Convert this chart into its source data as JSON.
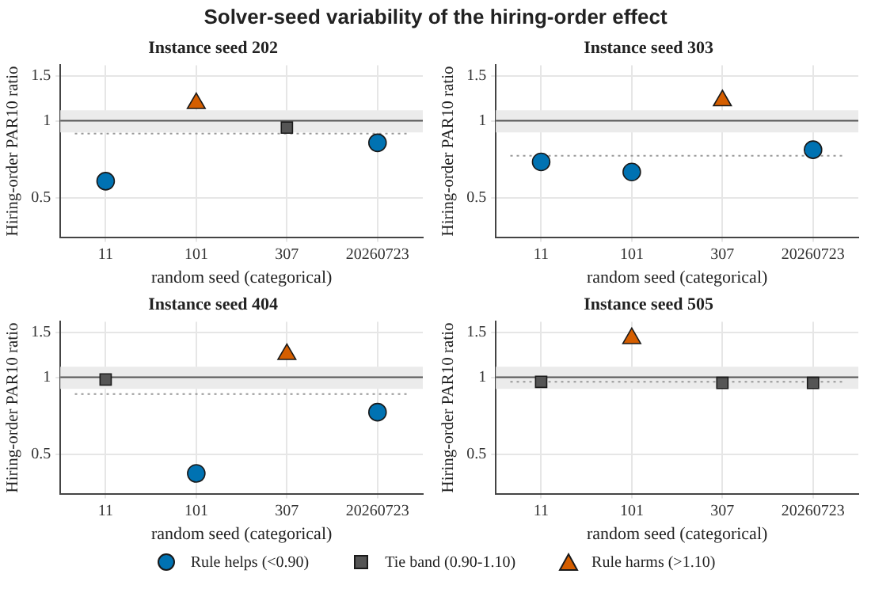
{
  "chart_data": [
    {
      "type": "scatter",
      "title": "Solver-seed variability of the hiring-order effect",
      "subtitle": "Instance seed 202",
      "xlabel": "random seed (categorical)",
      "ylabel": "Hiring-order PAR10 ratio",
      "categories": [
        "11",
        "101",
        "307",
        "20260723"
      ],
      "log": "y",
      "ylim": [
        0.35,
        1.65
      ],
      "yticks": [
        0.5,
        1,
        1.5
      ],
      "grid": true,
      "legend": "bottom",
      "series": [
        {
          "name": "Rule helps (<0.90)",
          "color": "#0072b2",
          "marker": "circle",
          "values": [
            0.58,
            null,
            null,
            0.82
          ]
        },
        {
          "name": "Tie band (0.90-1.10)",
          "color": "#555555",
          "marker": "square",
          "values": [
            null,
            null,
            0.94,
            null
          ]
        },
        {
          "name": "Rule harms (>1.10)",
          "color": "#d55e00",
          "marker": "triangle",
          "values": [
            null,
            1.17,
            null,
            null
          ]
        }
      ],
      "bands": [
        {
          "axis": "y",
          "from": 0.9,
          "to": 1.1,
          "color": "#ebebeb"
        }
      ],
      "ref_lines": [
        {
          "axis": "y",
          "value": 1,
          "color": "#555555",
          "line_style": "solid"
        },
        {
          "axis": "y",
          "value": 0.89,
          "color": "#999999",
          "line_style": "dotted"
        }
      ]
    },
    {
      "type": "scatter",
      "subtitle": "Instance seed 303",
      "xlabel": "random seed (categorical)",
      "ylabel": "Hiring-order PAR10 ratio",
      "categories": [
        "11",
        "101",
        "307",
        "20260723"
      ],
      "log": "y",
      "ylim": [
        0.35,
        1.65
      ],
      "yticks": [
        0.5,
        1,
        1.5
      ],
      "grid": true,
      "series": [
        {
          "color": "#0072b2",
          "marker": "circle",
          "values": [
            0.69,
            0.63,
            null,
            0.77
          ]
        },
        {
          "color": "#555555",
          "marker": "square",
          "values": [
            null,
            null,
            null,
            null
          ]
        },
        {
          "color": "#d55e00",
          "marker": "triangle",
          "values": [
            null,
            null,
            1.2,
            null
          ]
        }
      ],
      "bands": [
        {
          "axis": "y",
          "from": 0.9,
          "to": 1.1,
          "color": "#ebebeb"
        }
      ],
      "ref_lines": [
        {
          "axis": "y",
          "value": 1,
          "color": "#555555",
          "line_style": "solid"
        },
        {
          "axis": "y",
          "value": 0.73,
          "color": "#999999",
          "line_style": "dotted"
        }
      ]
    },
    {
      "type": "scatter",
      "subtitle": "Instance seed 404",
      "xlabel": "random seed (categorical)",
      "ylabel": "Hiring-order PAR10 ratio",
      "categories": [
        "11",
        "101",
        "307",
        "20260723"
      ],
      "log": "y",
      "ylim": [
        0.35,
        1.65
      ],
      "yticks": [
        0.5,
        1,
        1.5
      ],
      "grid": true,
      "series": [
        {
          "color": "#0072b2",
          "marker": "circle",
          "values": [
            null,
            0.42,
            null,
            0.73
          ]
        },
        {
          "color": "#555555",
          "marker": "square",
          "values": [
            0.98,
            null,
            null,
            null
          ]
        },
        {
          "color": "#d55e00",
          "marker": "triangle",
          "values": [
            null,
            null,
            1.23,
            null
          ]
        }
      ],
      "bands": [
        {
          "axis": "y",
          "from": 0.9,
          "to": 1.1,
          "color": "#ebebeb"
        }
      ],
      "ref_lines": [
        {
          "axis": "y",
          "value": 1,
          "color": "#555555",
          "line_style": "solid"
        },
        {
          "axis": "y",
          "value": 0.86,
          "color": "#999999",
          "line_style": "dotted"
        }
      ]
    },
    {
      "type": "scatter",
      "subtitle": "Instance seed 505",
      "xlabel": "random seed (categorical)",
      "ylabel": "Hiring-order PAR10 ratio",
      "categories": [
        "11",
        "101",
        "307",
        "20260723"
      ],
      "log": "y",
      "ylim": [
        0.35,
        1.65
      ],
      "yticks": [
        0.5,
        1,
        1.5
      ],
      "grid": true,
      "series": [
        {
          "color": "#0072b2",
          "marker": "circle",
          "values": [
            null,
            null,
            null,
            null
          ]
        },
        {
          "color": "#555555",
          "marker": "square",
          "values": [
            0.96,
            null,
            0.95,
            0.95
          ]
        },
        {
          "color": "#d55e00",
          "marker": "triangle",
          "values": [
            null,
            1.42,
            null,
            null
          ]
        }
      ],
      "bands": [
        {
          "axis": "y",
          "from": 0.9,
          "to": 1.1,
          "color": "#ebebeb"
        }
      ],
      "ref_lines": [
        {
          "axis": "y",
          "value": 1,
          "color": "#555555",
          "line_style": "solid"
        },
        {
          "axis": "y",
          "value": 0.96,
          "color": "#999999",
          "line_style": "dotted"
        }
      ]
    }
  ]
}
